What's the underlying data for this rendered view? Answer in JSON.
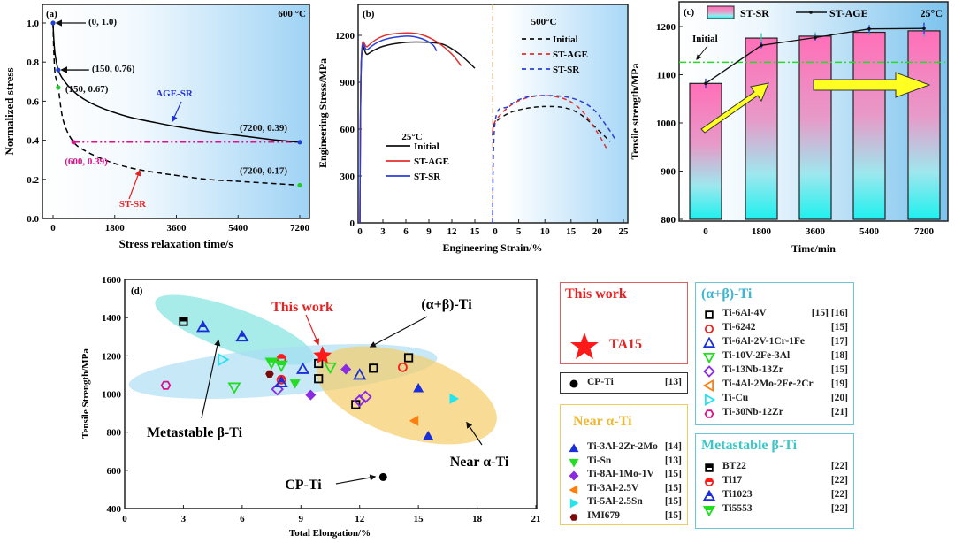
{
  "chart_data": [
    {
      "type": "line",
      "panel": "(a)",
      "annotation_temp": "600 °C",
      "xlabel": "Stress relaxation time/s",
      "ylabel": "Normalized stress",
      "xlim": [
        -200,
        7500
      ],
      "ylim": [
        0,
        1.1
      ],
      "xticks": [
        0,
        1800,
        3600,
        5400,
        7200
      ],
      "yticks": [
        0.0,
        0.2,
        0.4,
        0.6,
        0.8,
        1.0
      ],
      "series": [
        {
          "name": "AGE-SR",
          "style": "solid",
          "color": "#000000",
          "x": [
            0,
            20,
            60,
            150,
            300,
            600,
            1000,
            1500,
            2200,
            3000,
            3600,
            4500,
            5400,
            6300,
            7200
          ],
          "y": [
            1.0,
            0.92,
            0.84,
            0.76,
            0.71,
            0.65,
            0.6,
            0.56,
            0.52,
            0.49,
            0.47,
            0.445,
            0.425,
            0.405,
            0.39
          ]
        },
        {
          "name": "ST-SR",
          "style": "dashed",
          "color": "#000000",
          "x": [
            0,
            20,
            60,
            150,
            300,
            600,
            1000,
            1500,
            2000,
            2500,
            3000,
            3600,
            4500,
            5400,
            6300,
            7200
          ],
          "y": [
            1.0,
            0.86,
            0.74,
            0.67,
            0.5,
            0.39,
            0.34,
            0.3,
            0.27,
            0.25,
            0.235,
            0.22,
            0.2,
            0.19,
            0.18,
            0.17
          ]
        }
      ],
      "points": [
        {
          "x": 0,
          "y": 1.0,
          "label": "(0, 1.0)",
          "color": "#1f3fd6"
        },
        {
          "x": 150,
          "y": 0.76,
          "label": "(150, 0.76)",
          "color": "#1f3fd6"
        },
        {
          "x": 150,
          "y": 0.67,
          "label": "(150, 0.67)",
          "color": "#22cc22"
        },
        {
          "x": 600,
          "y": 0.39,
          "label": "(600, 0.39)",
          "color": "#e0108a"
        },
        {
          "x": 7200,
          "y": 0.39,
          "label": "(7200, 0.39)",
          "color": "#1f3fd6"
        },
        {
          "x": 7200,
          "y": 0.17,
          "label": "(7200, 0.17)",
          "color": "#22cc22"
        }
      ],
      "hline": {
        "y": 0.39,
        "from": 600,
        "to": 7200,
        "color": "#e0108a"
      },
      "labels": {
        "age_sr": "AGE-SR",
        "st_sr": "ST-SR"
      }
    },
    {
      "type": "line",
      "panel": "(b)",
      "xlabel": "Engineering Strain/%",
      "ylabel": "Engineering Stress/MPa",
      "ylim": [
        0,
        1350
      ],
      "yticks": [
        0,
        300,
        600,
        900,
        1200
      ],
      "left_xticks": [
        0,
        3,
        6,
        9,
        12,
        15
      ],
      "right_xticks": [
        0,
        5,
        10,
        15,
        20,
        25
      ],
      "left_title": "25°C",
      "right_title": "500°C",
      "left_series": [
        {
          "name": "Initial",
          "color": "#111111",
          "x": [
            0,
            0.2,
            1,
            3,
            6,
            9,
            11,
            13,
            15
          ],
          "y": [
            0,
            1040,
            1080,
            1130,
            1155,
            1155,
            1140,
            1080,
            990
          ]
        },
        {
          "name": "ST-AGE",
          "color": "#e03030",
          "x": [
            0,
            0.2,
            1,
            3,
            6,
            8,
            10,
            12,
            13.2
          ],
          "y": [
            0,
            1060,
            1130,
            1195,
            1215,
            1205,
            1160,
            1080,
            1005
          ]
        },
        {
          "name": "ST-SR",
          "color": "#2a3fd8",
          "x": [
            0,
            0.2,
            1,
            3,
            6,
            8,
            9.5,
            10
          ],
          "y": [
            0,
            1050,
            1110,
            1170,
            1195,
            1180,
            1140,
            1100
          ]
        }
      ],
      "right_series": [
        {
          "name": "Initial",
          "color": "#111111",
          "x": [
            0,
            0.5,
            3,
            6,
            10,
            14,
            17,
            20,
            22.5
          ],
          "y": [
            560,
            640,
            700,
            730,
            745,
            735,
            690,
            600,
            520
          ]
        },
        {
          "name": "ST-AGE",
          "color": "#e03030",
          "x": [
            0,
            0.5,
            3,
            6,
            10,
            14,
            17,
            20,
            21.8
          ],
          "y": [
            580,
            650,
            740,
            795,
            815,
            790,
            720,
            580,
            475
          ]
        },
        {
          "name": "ST-SR",
          "color": "#2a3fd8",
          "x": [
            0,
            0.5,
            3,
            6,
            10,
            15,
            19,
            22,
            23.5
          ],
          "y": [
            0,
            650,
            745,
            800,
            815,
            800,
            735,
            610,
            530
          ]
        }
      ]
    },
    {
      "type": "bar",
      "panel": "(c)",
      "annotation_temp": "25°C",
      "xlabel": "Time/min",
      "ylabel": "Tensile strength/MPa",
      "ylim": [
        800,
        1240
      ],
      "yticks": [
        800,
        900,
        1000,
        1100,
        1200
      ],
      "categories": [
        "0",
        "1800",
        "3600",
        "5400",
        "7200"
      ],
      "series": [
        {
          "name": "ST-SR",
          "type": "bar",
          "values": [
            1082,
            1176,
            1180,
            1188,
            1191
          ],
          "errors": [
            0,
            10,
            8,
            6,
            12
          ]
        },
        {
          "name": "ST-AGE",
          "type": "line",
          "values": [
            1082,
            1161,
            1177,
            1195,
            1196
          ],
          "errors": [
            10,
            6,
            6,
            8,
            12
          ]
        }
      ],
      "initial_line": {
        "label": "Initial",
        "value": 1126,
        "color": "#22dd22"
      }
    },
    {
      "type": "scatter",
      "panel": "(d)",
      "xlabel": "Total Elongation/%",
      "ylabel": "Tensile Strength/MPa",
      "xlim": [
        0,
        21
      ],
      "ylim": [
        400,
        1600
      ],
      "xticks": [
        0,
        3,
        6,
        9,
        12,
        15,
        18,
        21
      ],
      "yticks": [
        400,
        600,
        800,
        1000,
        1200,
        1400,
        1600
      ],
      "annotations": [
        "This work",
        "(α+β)-Ti",
        "Metastable β-Ti",
        "Near α-Ti",
        "CP-Ti"
      ],
      "series": [
        {
          "group": "This work",
          "name": "TA15",
          "marker": "star",
          "color": "#ff1a1a",
          "fill": true,
          "points": [
            [
              10.1,
              1200
            ]
          ]
        },
        {
          "group": "CP-Ti",
          "name": "CP-Ti",
          "ref": "[13]",
          "marker": "circle",
          "color": "#000000",
          "fill": true,
          "points": [
            [
              13.2,
              565
            ]
          ]
        },
        {
          "group": "Near α-Ti",
          "name": "Ti-3Al-2Zr-2Mo",
          "ref": "[14]",
          "marker": "triangle-up",
          "color": "#1a2fd8",
          "fill": true,
          "points": [
            [
              15.0,
              1030
            ],
            [
              15.5,
              780
            ]
          ]
        },
        {
          "group": "Near α-Ti",
          "name": "Ti-Sn",
          "ref": "[13]",
          "marker": "triangle-down",
          "color": "#22dd22",
          "fill": true,
          "points": [
            [
              8.7,
              1055
            ]
          ]
        },
        {
          "group": "Near α-Ti",
          "name": "Ti-8Al-1Mo-1V",
          "ref": "[15]",
          "marker": "diamond",
          "color": "#8a2be2",
          "fill": true,
          "points": [
            [
              9.5,
              995
            ],
            [
              11.3,
              1130
            ]
          ]
        },
        {
          "group": "Near α-Ti",
          "name": "Ti-3Al-2.5V",
          "ref": "[15]",
          "marker": "triangle-left",
          "color": "#ff7f0e",
          "fill": true,
          "points": [
            [
              14.8,
              860
            ]
          ]
        },
        {
          "group": "Near α-Ti",
          "name": "Ti-5Al-2.5Sn",
          "ref": "[15]",
          "marker": "triangle-right",
          "color": "#22e5ee",
          "fill": true,
          "points": [
            [
              16.8,
              975
            ]
          ]
        },
        {
          "group": "Near α-Ti",
          "name": "IMI679",
          "ref": "[15]",
          "marker": "hexagon",
          "color": "#7a0a0a",
          "fill": true,
          "points": [
            [
              7.4,
              1105
            ]
          ]
        },
        {
          "group": "(α+β)-Ti",
          "name": "Ti-6Al-4V",
          "ref": "[15] [16]",
          "marker": "square",
          "color": "#000000",
          "fill": false,
          "points": [
            [
              9.9,
              1160
            ],
            [
              9.9,
              1080
            ],
            [
              12.7,
              1135
            ],
            [
              14.5,
              1190
            ],
            [
              11.8,
              945
            ]
          ]
        },
        {
          "group": "(α+β)-Ti",
          "name": "Ti-6242",
          "ref": "[15]",
          "marker": "circle",
          "color": "#ff1a1a",
          "fill": false,
          "points": [
            [
              14.2,
              1140
            ]
          ]
        },
        {
          "group": "(α+β)-Ti",
          "name": "Ti-6Al-2V-1Cr-1Fe",
          "ref": "[17]",
          "marker": "triangle-up",
          "color": "#1a2fd8",
          "fill": false,
          "points": [
            [
              9.1,
              1130
            ],
            [
              12.0,
              1100
            ]
          ]
        },
        {
          "group": "(α+β)-Ti",
          "name": "Ti-10V-2Fe-3Al",
          "ref": "[18]",
          "marker": "triangle-down",
          "color": "#22dd22",
          "fill": false,
          "points": [
            [
              5.6,
              1035
            ],
            [
              10.5,
              1140
            ]
          ]
        },
        {
          "group": "(α+β)-Ti",
          "name": "Ti-13Nb-13Zr",
          "ref": "[15]",
          "marker": "diamond",
          "color": "#8a2be2",
          "fill": false,
          "points": [
            [
              7.8,
              1025
            ],
            [
              12.0,
              965
            ],
            [
              12.3,
              985
            ]
          ]
        },
        {
          "group": "(α+β)-Ti",
          "name": "Ti-4Al-2Mo-2Fe-2Cr",
          "ref": "[19]",
          "marker": "triangle-left",
          "color": "#ff7f0e",
          "fill": false,
          "points": []
        },
        {
          "group": "(α+β)-Ti",
          "name": "Ti-Cu",
          "ref": "[20]",
          "marker": "triangle-right",
          "color": "#22e5ee",
          "fill": false,
          "points": [
            [
              5.0,
              1180
            ]
          ]
        },
        {
          "group": "(α+β)-Ti",
          "name": "Ti-30Nb-12Zr",
          "ref": "[21]",
          "marker": "hexagon",
          "color": "#e0108a",
          "fill": false,
          "points": [
            [
              2.1,
              1045
            ]
          ]
        },
        {
          "group": "Metastable β-Ti",
          "name": "BT22",
          "ref": "[22]",
          "marker": "square-half",
          "color": "#000000",
          "fill": false,
          "points": [
            [
              3.0,
              1380
            ]
          ]
        },
        {
          "group": "Metastable β-Ti",
          "name": "Ti17",
          "ref": "[22]",
          "marker": "circle-half",
          "color": "#ff1a1a",
          "fill": false,
          "points": [
            [
              8.0,
              1185
            ],
            [
              8.0,
              1075
            ]
          ]
        },
        {
          "group": "Metastable β-Ti",
          "name": "Ti1023",
          "ref": "[22]",
          "marker": "triangle-up-half",
          "color": "#1a2fd8",
          "fill": false,
          "points": [
            [
              4.0,
              1350
            ],
            [
              6.0,
              1300
            ],
            [
              8.0,
              1060
            ]
          ]
        },
        {
          "group": "Metastable β-Ti",
          "name": "Ti5553",
          "ref": "[22]",
          "marker": "triangle-down-half",
          "color": "#22dd22",
          "fill": false,
          "points": [
            [
              7.5,
              1165
            ],
            [
              8.0,
              1150
            ]
          ]
        }
      ]
    }
  ],
  "legends": {
    "this_work": {
      "title": "This work",
      "items": [
        {
          "name": "TA15"
        }
      ]
    },
    "cp_ti": {
      "items": [
        {
          "name": "CP-Ti",
          "ref": "[13]"
        }
      ]
    },
    "near_alpha": {
      "title": "Near α-Ti",
      "items": [
        {
          "name": "Ti-3Al-2Zr-2Mo",
          "ref": "[14]"
        },
        {
          "name": "Ti-Sn",
          "ref": "[13]"
        },
        {
          "name": "Ti-8Al-1Mo-1V",
          "ref": "[15]"
        },
        {
          "name": "Ti-3Al-2.5V",
          "ref": "[15]"
        },
        {
          "name": "Ti-5Al-2.5Sn",
          "ref": "[15]"
        },
        {
          "name": "IMI679",
          "ref": "[15]"
        }
      ]
    },
    "alpha_beta": {
      "title": "(α+β)-Ti",
      "items": [
        {
          "name": "Ti-6Al-4V",
          "ref": "[15] [16]"
        },
        {
          "name": "Ti-6242",
          "ref": "[15]"
        },
        {
          "name": "Ti-6Al-2V-1Cr-1Fe",
          "ref": "[17]"
        },
        {
          "name": "Ti-10V-2Fe-3Al",
          "ref": "[18]"
        },
        {
          "name": "Ti-13Nb-13Zr",
          "ref": "[15]"
        },
        {
          "name": "Ti-4Al-2Mo-2Fe-2Cr",
          "ref": "[19]"
        },
        {
          "name": "Ti-Cu",
          "ref": "[20]"
        },
        {
          "name": "Ti-30Nb-12Zr",
          "ref": "[21]"
        }
      ]
    },
    "metastable_beta": {
      "title": "Metastable β-Ti",
      "items": [
        {
          "name": "BT22",
          "ref": "[22]"
        },
        {
          "name": "Ti17",
          "ref": "[22]"
        },
        {
          "name": "Ti1023",
          "ref": "[22]"
        },
        {
          "name": "Ti5553",
          "ref": "[22]"
        }
      ]
    }
  }
}
